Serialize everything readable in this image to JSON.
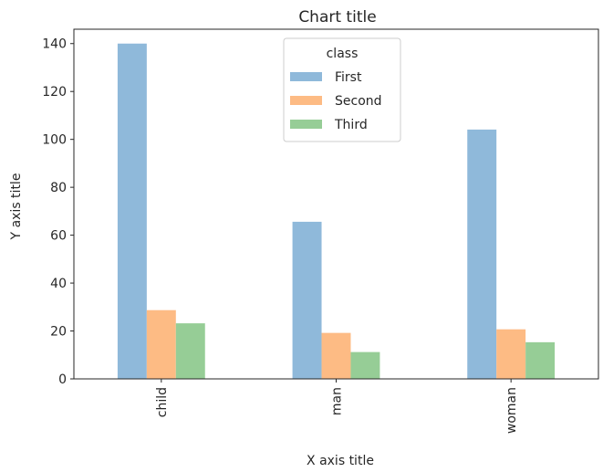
{
  "chart_data": {
    "type": "bar",
    "title": "Chart title",
    "xlabel": "X axis title",
    "ylabel": "Y axis title",
    "categories": [
      "child",
      "man",
      "woman"
    ],
    "ylim": [
      0,
      146
    ],
    "yticks": [
      0,
      20,
      40,
      60,
      80,
      100,
      120,
      140
    ],
    "grid": false,
    "legend": {
      "title": "class",
      "placement": "top-center"
    },
    "series": [
      {
        "name": "First",
        "color": "#8fb9da",
        "values": [
          140.0,
          65.6,
          104.1
        ]
      },
      {
        "name": "Second",
        "color": "#fdbb84",
        "values": [
          28.7,
          19.2,
          20.7
        ]
      },
      {
        "name": "Third",
        "color": "#96cd96",
        "values": [
          23.2,
          11.2,
          15.3
        ]
      }
    ]
  }
}
